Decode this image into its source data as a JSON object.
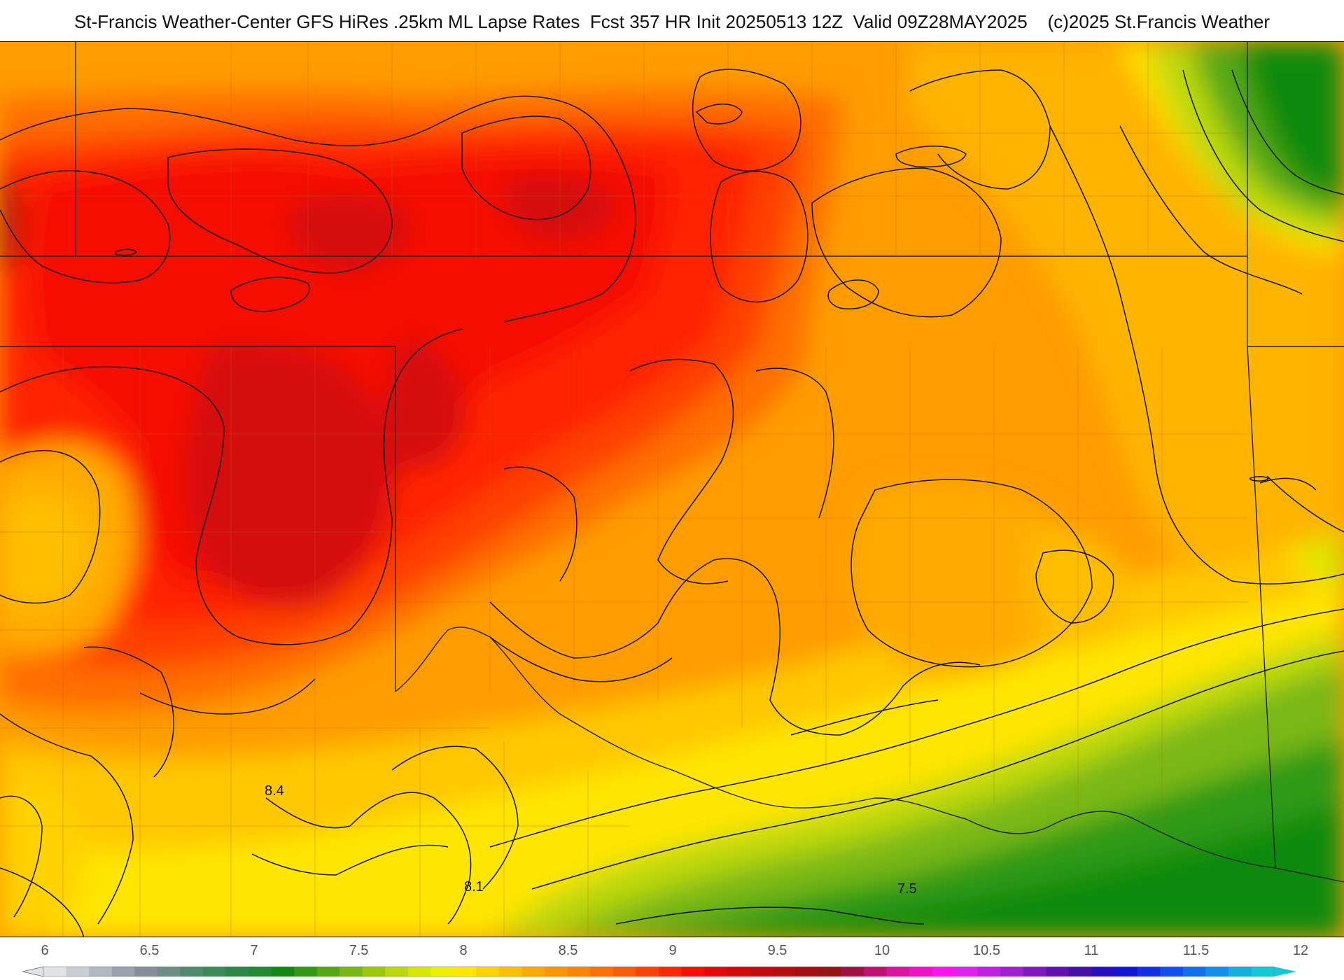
{
  "header": {
    "title": "St-Francis Weather-Center GFS HiRes .25km ML Lapse Rates  Fcst 357 HR Init 20250513 12Z  Valid 09Z28MAY2025    (c)2025 St.Francis Weather"
  },
  "map": {
    "contour_labels": [
      {
        "text": "8.4"
      },
      {
        "text": "8.1"
      },
      {
        "text": "7.5"
      }
    ]
  },
  "colorbar": {
    "ticks": [
      "6",
      "6.5",
      "7",
      "7.5",
      "8",
      "8.5",
      "9",
      "9.5",
      "10",
      "10.5",
      "11",
      "11.5",
      "12"
    ],
    "colors": [
      "#dfe3e8",
      "#c9ced6",
      "#b2b8c2",
      "#9aa2ae",
      "#848d99",
      "#6b8f84",
      "#4f8a6e",
      "#3a8a58",
      "#2a8a44",
      "#1f8a30",
      "#108a10",
      "#2f9a12",
      "#55a812",
      "#79b814",
      "#9cc80a",
      "#bcd80a",
      "#d8e600",
      "#eef000",
      "#ffe600",
      "#ffd200",
      "#ffbe00",
      "#ffaa00",
      "#ff9600",
      "#ff8200",
      "#ff6e00",
      "#ff5a00",
      "#ff4000",
      "#ff2600",
      "#f51000",
      "#e40808",
      "#d40808",
      "#c40c0c",
      "#b40e0e",
      "#a41010",
      "#961414",
      "#a01040",
      "#c01070",
      "#e010a0",
      "#f010c8",
      "#ff10f0",
      "#e020f0",
      "#c020e0",
      "#a020d0",
      "#8018c0",
      "#6010b0",
      "#4410a8",
      "#2810c0",
      "#1018d8",
      "#1030e8",
      "#1050f0",
      "#1070f0",
      "#1090e8",
      "#10b0e0",
      "#10c8d8"
    ],
    "min_color": "#dfe3e8",
    "max_color": "#10c8d8"
  }
}
